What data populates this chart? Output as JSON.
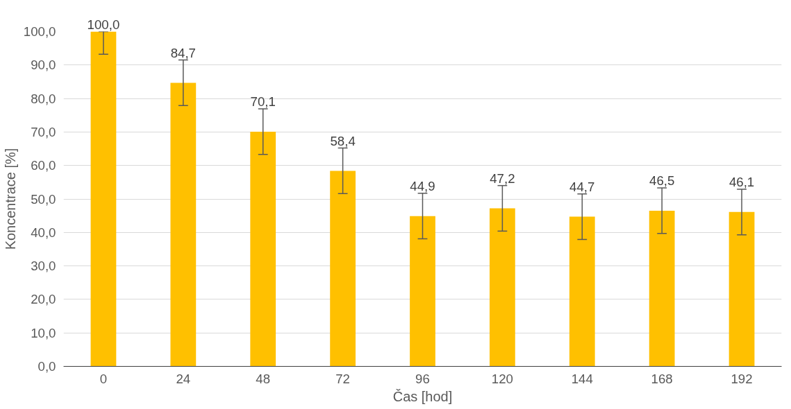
{
  "chart_data": {
    "type": "bar",
    "xlabel": "Čas [hod]",
    "ylabel": "Koncentrace [%]",
    "categories": [
      "0",
      "24",
      "48",
      "72",
      "96",
      "120",
      "144",
      "168",
      "192"
    ],
    "values": [
      100.0,
      84.7,
      70.1,
      58.4,
      44.9,
      47.2,
      44.7,
      46.5,
      46.1
    ],
    "value_labels": [
      "100,0",
      "84,7",
      "70,1",
      "58,4",
      "44,9",
      "47,2",
      "44,7",
      "46,5",
      "46,1"
    ],
    "errors": [
      [
        93.2,
        100
      ],
      6.8,
      6.8,
      6.8,
      6.8,
      6.8,
      6.8,
      6.8,
      6.8
    ],
    "color": "#ffc000",
    "ylim": [
      0,
      100
    ],
    "yticks": [
      {
        "value": 0,
        "label": "0,0"
      },
      {
        "value": 10,
        "label": "10,0"
      },
      {
        "value": 20,
        "label": "20,0"
      },
      {
        "value": 30,
        "label": "30,0"
      },
      {
        "value": 40,
        "label": "40,0"
      },
      {
        "value": 50,
        "label": "50,0"
      },
      {
        "value": 60,
        "label": "60,0"
      },
      {
        "value": 70,
        "label": "70,0"
      },
      {
        "value": 80,
        "label": "80,0"
      },
      {
        "value": 90,
        "label": "90,0"
      },
      {
        "value": 100,
        "label": "100,0"
      }
    ],
    "grid": "y"
  }
}
